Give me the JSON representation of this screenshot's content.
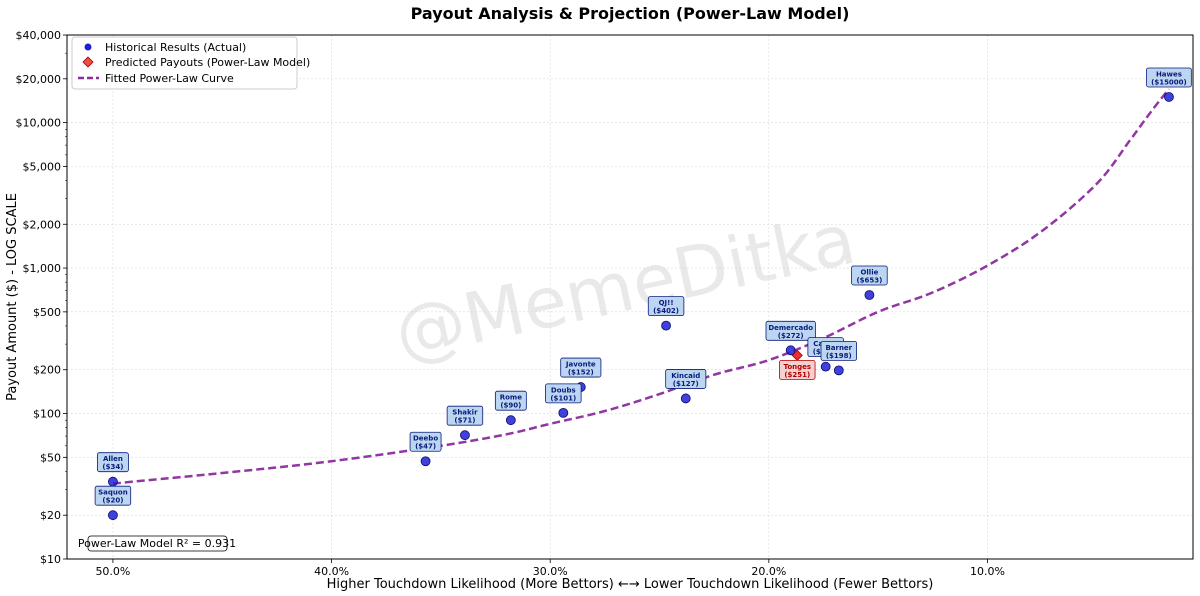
{
  "chart_data": {
    "type": "scatter",
    "title": "Payout Analysis & Projection (Power-Law Model)",
    "xlabel": "Higher Touchdown Likelihood (More Bettors) ←→ Lower Touchdown Likelihood (Fewer Bettors)",
    "ylabel": "Payout Amount ($) - LOG SCALE",
    "x_ticks": [
      {
        "value": 50,
        "label": "50.0%"
      },
      {
        "value": 40,
        "label": "40.0%"
      },
      {
        "value": 30,
        "label": "30.0%"
      },
      {
        "value": 20,
        "label": "20.0%"
      },
      {
        "value": 10,
        "label": "10.0%"
      }
    ],
    "y_ticks": [
      {
        "value": 10,
        "label": "$10"
      },
      {
        "value": 20,
        "label": "$20"
      },
      {
        "value": 50,
        "label": "$50"
      },
      {
        "value": 100,
        "label": "$100"
      },
      {
        "value": 200,
        "label": "$200"
      },
      {
        "value": 500,
        "label": "$500"
      },
      {
        "value": 1000,
        "label": "$1,000"
      },
      {
        "value": 2000,
        "label": "$2,000"
      },
      {
        "value": 5000,
        "label": "$5,000"
      },
      {
        "value": 10000,
        "label": "$10,000"
      },
      {
        "value": 20000,
        "label": "$20,000"
      },
      {
        "value": 40000,
        "label": "$40,000"
      }
    ],
    "xlim": [
      52.1,
      0.6
    ],
    "ylim": [
      10,
      40000
    ],
    "y_scale": "log",
    "grid": true,
    "legend_position": "top-left",
    "legend": [
      "Historical Results (Actual)",
      "Predicted Payouts (Power-Law Model)",
      "Fitted Power-Law Curve"
    ],
    "series": [
      {
        "name": "Historical Results (Actual)",
        "color": "#1f1fd6",
        "points": [
          {
            "x": 50.0,
            "y": 34,
            "name": "Allen",
            "value_label": "($34)"
          },
          {
            "x": 50.0,
            "y": 20,
            "name": "Saquon",
            "value_label": "($20)"
          },
          {
            "x": 35.7,
            "y": 47,
            "name": "Deebo",
            "value_label": "($47)"
          },
          {
            "x": 33.9,
            "y": 71,
            "name": "Shakir",
            "value_label": "($71)"
          },
          {
            "x": 31.8,
            "y": 90,
            "name": "Rome",
            "value_label": "($90)"
          },
          {
            "x": 29.4,
            "y": 101,
            "name": "Doubs",
            "value_label": "($101)"
          },
          {
            "x": 28.6,
            "y": 152,
            "name": "Javonte",
            "value_label": "($152)"
          },
          {
            "x": 24.7,
            "y": 402,
            "name": "QJ!!",
            "value_label": "($402)"
          },
          {
            "x": 23.8,
            "y": 127,
            "name": "Kincaid",
            "value_label": "($127)"
          },
          {
            "x": 19.0,
            "y": 272,
            "name": "Demercado",
            "value_label": "($272)"
          },
          {
            "x": 17.4,
            "y": 210,
            "name": "Carter",
            "value_label": "($210)"
          },
          {
            "x": 16.8,
            "y": 198,
            "name": "Barner",
            "value_label": "($198)"
          },
          {
            "x": 15.4,
            "y": 653,
            "name": "Ollie",
            "value_label": "($653)"
          },
          {
            "x": 1.7,
            "y": 15000,
            "name": "Hawes",
            "value_label": "($15000)"
          }
        ]
      },
      {
        "name": "Predicted Payouts (Power-Law Model)",
        "color": "#e8302f",
        "points": [
          {
            "x": 18.7,
            "y": 251,
            "name": "Tonges",
            "value_label": "($251)"
          }
        ]
      },
      {
        "name": "Fitted Power-Law Curve",
        "color": "#8b2c9c",
        "points": [
          {
            "x": 50.0,
            "y": 33
          },
          {
            "x": 45.0,
            "y": 39
          },
          {
            "x": 40.0,
            "y": 47
          },
          {
            "x": 35.0,
            "y": 60
          },
          {
            "x": 32.0,
            "y": 72
          },
          {
            "x": 30.0,
            "y": 85
          },
          {
            "x": 27.5,
            "y": 104
          },
          {
            "x": 25.0,
            "y": 136
          },
          {
            "x": 22.5,
            "y": 185
          },
          {
            "x": 20.0,
            "y": 233
          },
          {
            "x": 17.5,
            "y": 330
          },
          {
            "x": 15.0,
            "y": 500
          },
          {
            "x": 12.5,
            "y": 680
          },
          {
            "x": 10.0,
            "y": 1040
          },
          {
            "x": 7.5,
            "y": 1800
          },
          {
            "x": 5.0,
            "y": 3800
          },
          {
            "x": 3.5,
            "y": 7500
          },
          {
            "x": 2.5,
            "y": 12000
          },
          {
            "x": 1.7,
            "y": 17000
          }
        ]
      }
    ],
    "annotation": "Power-Law Model R² = 0.931",
    "watermark": "@MemeDitka"
  }
}
